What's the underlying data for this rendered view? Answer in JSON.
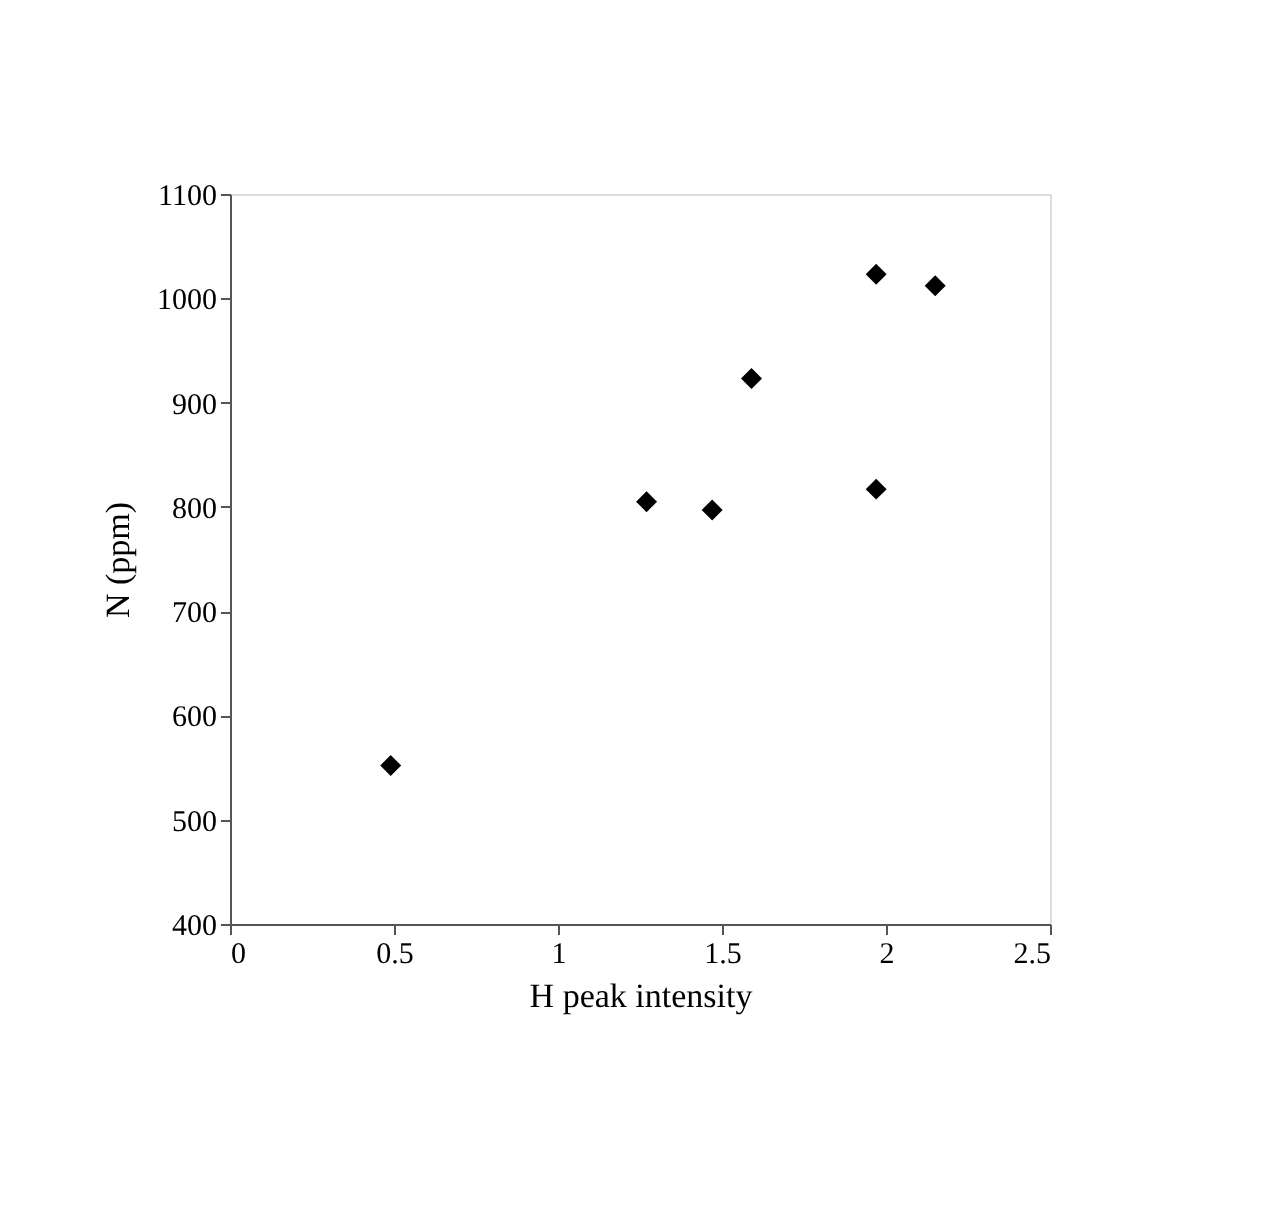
{
  "chart_data": {
    "type": "scatter",
    "xlabel": "H peak intensity",
    "ylabel": "N (ppm)",
    "x": [
      0.49,
      1.27,
      1.47,
      1.59,
      1.97,
      1.97,
      2.15
    ],
    "series": [
      {
        "color": "#000000",
        "values": [
          552,
          805,
          797,
          923,
          817,
          1023,
          1012
        ]
      }
    ],
    "xlim": [
      0,
      2.5
    ],
    "xticks": [
      0,
      0.5,
      1,
      1.5,
      2,
      2.5
    ],
    "ylim": [
      400,
      1100
    ],
    "yticks": [
      400,
      500,
      600,
      700,
      800,
      900,
      1000,
      1100
    ],
    "marker": "diamond",
    "grid": false
  }
}
